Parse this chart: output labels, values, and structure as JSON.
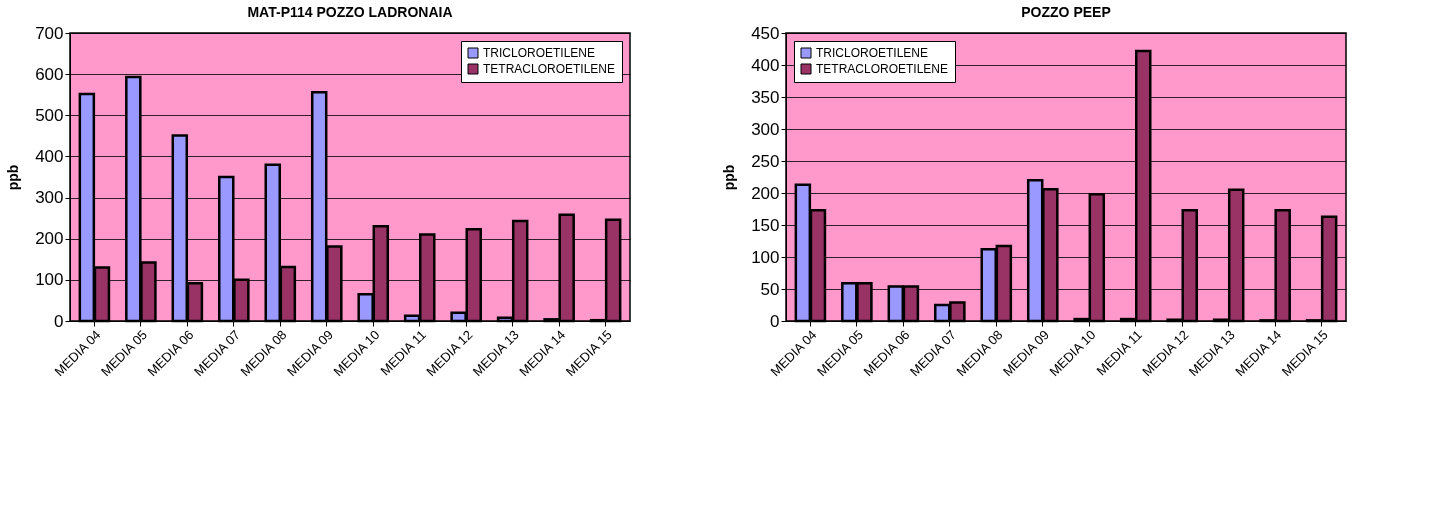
{
  "chart_data": [
    {
      "type": "bar",
      "title": "MAT-P114 POZZO LADRONAIA",
      "ylabel": "ppb",
      "categories": [
        "MEDIA 04",
        "MEDIA 05",
        "MEDIA 06",
        "MEDIA 07",
        "MEDIA 08",
        "MEDIA 09",
        "MEDIA 10",
        "MEDIA 11",
        "MEDIA 12",
        "MEDIA 13",
        "MEDIA 14",
        "MEDIA 15"
      ],
      "series": [
        {
          "name": "TRICLOROETILENE",
          "color": "#9999ff",
          "values": [
            552,
            593,
            451,
            350,
            380,
            556,
            65,
            13,
            20,
            8,
            4,
            2
          ]
        },
        {
          "name": "TETRACLOROETILENE",
          "color": "#993366",
          "values": [
            130,
            142,
            92,
            100,
            131,
            181,
            230,
            210,
            223,
            243,
            258,
            246
          ]
        }
      ],
      "ylim": [
        0,
        700
      ],
      "yticks": [
        0,
        100,
        200,
        300,
        400,
        500,
        600,
        700
      ],
      "grid": "y",
      "legend": "top right"
    },
    {
      "type": "bar",
      "title": "POZZO PEEP",
      "ylabel": "ppb",
      "categories": [
        "MEDIA 04",
        "MEDIA 05",
        "MEDIA 06",
        "MEDIA 07",
        "MEDIA 08",
        "MEDIA 09",
        "MEDIA 10",
        "MEDIA 11",
        "MEDIA 12",
        "MEDIA 13",
        "MEDIA 14",
        "MEDIA 15"
      ],
      "series": [
        {
          "name": "TRICLOROETILENE",
          "color": "#9999ff",
          "values": [
            213,
            59,
            54,
            25,
            112,
            220,
            3,
            3,
            2,
            2,
            1,
            1
          ]
        },
        {
          "name": "TETRACLOROETILENE",
          "color": "#993366",
          "values": [
            173,
            59,
            54,
            29,
            117,
            206,
            198,
            422,
            173,
            205,
            173,
            163
          ]
        }
      ],
      "ylim": [
        0,
        450
      ],
      "yticks": [
        0,
        50,
        100,
        150,
        200,
        250,
        300,
        350,
        400,
        450
      ],
      "grid": "y",
      "legend": "top left"
    }
  ]
}
